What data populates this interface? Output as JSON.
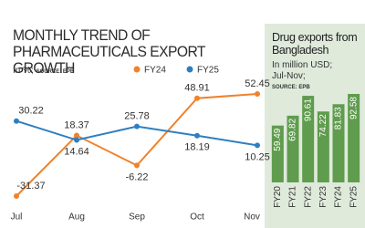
{
  "chart_data": [
    {
      "type": "line",
      "title": "MONTHLY TREND OF PHARMACEUTICALS EXPORT GROWTH",
      "subtitle": "In %;",
      "source": "SOURCE: EPB",
      "categories": [
        "Jul",
        "Aug",
        "Sep",
        "Oct",
        "Nov"
      ],
      "series": [
        {
          "name": "FY24",
          "color": "#f0822a",
          "values": [
            -31.37,
            18.37,
            -6.22,
            48.91,
            52.45
          ]
        },
        {
          "name": "FY25",
          "color": "#2f7fc0",
          "values": [
            30.22,
            14.64,
            25.78,
            18.19,
            10.25
          ]
        }
      ]
    },
    {
      "type": "bar",
      "title": "Drug exports from Bangladesh",
      "subtitle": "In million USD;",
      "period": "Jul-Nov;",
      "source": "SOURCE: EPB",
      "categories": [
        "FY20",
        "FY21",
        "FY22",
        "FY23",
        "FY24",
        "FY25"
      ],
      "values": [
        59.49,
        69.82,
        90.61,
        74.22,
        81.83,
        92.58
      ],
      "color": "#5f9c4e"
    }
  ]
}
